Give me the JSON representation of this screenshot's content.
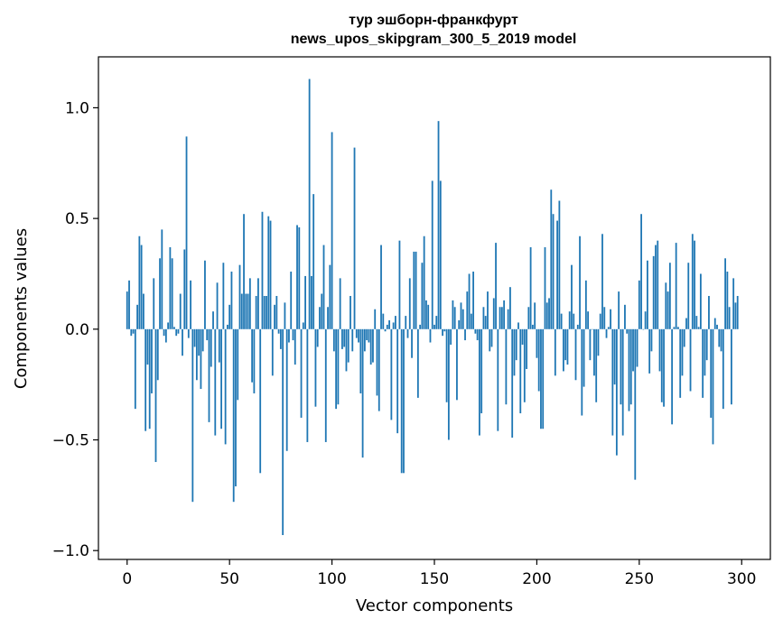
{
  "chart_data": {
    "type": "bar",
    "title": "тур эшборн-франкфурт",
    "subtitle": "news_upos_skipgram_300_5_2019 model",
    "xlabel": "Vector components",
    "ylabel": "Components values",
    "xlim": [
      -14,
      314
    ],
    "ylim": [
      -1.04,
      1.23
    ],
    "xticks": [
      0,
      50,
      100,
      150,
      200,
      250,
      300
    ],
    "xtick_labels": [
      "0",
      "50",
      "100",
      "150",
      "200",
      "250",
      "300"
    ],
    "yticks": [
      -1.0,
      -0.5,
      0.0,
      0.5,
      1.0
    ],
    "ytick_labels": [
      "−1.0",
      "−0.5",
      "0.0",
      "0.5",
      "1.0"
    ],
    "grid": false,
    "bar_color": "#1f77b4",
    "x_start": 0,
    "values": [
      0.17,
      0.22,
      -0.03,
      -0.02,
      -0.36,
      0.11,
      0.42,
      0.38,
      0.16,
      -0.46,
      -0.16,
      -0.45,
      -0.29,
      0.23,
      -0.6,
      -0.23,
      0.32,
      0.45,
      -0.03,
      -0.06,
      0.03,
      0.37,
      0.32,
      0.01,
      -0.03,
      -0.02,
      0.16,
      -0.12,
      0.36,
      0.87,
      -0.04,
      0.22,
      -0.78,
      -0.08,
      -0.23,
      -0.12,
      -0.27,
      -0.1,
      0.31,
      -0.05,
      -0.42,
      -0.17,
      0.08,
      -0.48,
      0.21,
      -0.15,
      -0.45,
      0.3,
      -0.52,
      0.02,
      0.11,
      0.26,
      -0.78,
      -0.71,
      -0.32,
      0.29,
      0.16,
      0.52,
      0.16,
      0.16,
      0.23,
      -0.24,
      -0.29,
      0.15,
      0.23,
      -0.65,
      0.53,
      0.15,
      0.15,
      0.51,
      0.49,
      -0.21,
      0.11,
      0.15,
      -0.02,
      -0.09,
      -0.93,
      0.12,
      -0.55,
      -0.06,
      0.26,
      -0.05,
      -0.16,
      0.47,
      0.46,
      -0.4,
      0.03,
      0.24,
      -0.51,
      1.13,
      0.24,
      0.61,
      -0.35,
      -0.08,
      0.1,
      0.16,
      0.38,
      -0.51,
      0.1,
      0.29,
      0.89,
      -0.1,
      -0.36,
      -0.34,
      0.23,
      -0.09,
      -0.08,
      -0.19,
      -0.15,
      0.15,
      -0.1,
      0.82,
      -0.04,
      -0.06,
      -0.29,
      -0.58,
      -0.1,
      -0.05,
      -0.06,
      -0.16,
      -0.15,
      0.09,
      -0.3,
      -0.37,
      0.38,
      0.07,
      -0.01,
      0.02,
      0.04,
      -0.41,
      0.03,
      0.06,
      -0.47,
      0.4,
      -0.65,
      -0.65,
      0.06,
      -0.04,
      0.23,
      -0.13,
      0.35,
      0.35,
      -0.31,
      0.02,
      0.3,
      0.42,
      0.13,
      0.11,
      -0.06,
      0.67,
      0.02,
      0.06,
      0.94,
      0.67,
      -0.03,
      -0.01,
      -0.33,
      -0.5,
      -0.07,
      0.13,
      0.1,
      -0.32,
      0.04,
      0.12,
      0.09,
      -0.05,
      0.17,
      0.25,
      0.07,
      0.26,
      -0.02,
      -0.05,
      -0.48,
      -0.38,
      0.1,
      0.06,
      0.17,
      -0.1,
      -0.08,
      0.14,
      0.39,
      -0.46,
      0.1,
      0.1,
      0.13,
      -0.34,
      0.09,
      0.19,
      -0.49,
      -0.21,
      -0.14,
      0.03,
      -0.38,
      -0.07,
      -0.33,
      -0.18,
      0.1,
      0.37,
      0.02,
      0.12,
      -0.13,
      -0.28,
      -0.45,
      -0.45,
      0.37,
      0.12,
      0.14,
      0.63,
      0.52,
      -0.21,
      0.49,
      0.58,
      0.07,
      -0.19,
      -0.14,
      -0.16,
      0.08,
      0.29,
      0.07,
      -0.23,
      0.02,
      0.42,
      -0.39,
      -0.26,
      0.22,
      0.08,
      -0.14,
      0.0,
      -0.21,
      -0.33,
      -0.12,
      0.07,
      0.43,
      0.1,
      -0.04,
      0.01,
      0.09,
      -0.48,
      -0.25,
      -0.57,
      0.17,
      -0.34,
      -0.48,
      0.11,
      -0.02,
      -0.37,
      -0.34,
      -0.19,
      -0.68,
      -0.17,
      0.22,
      0.52,
      0.0,
      0.08,
      0.31,
      -0.2,
      -0.1,
      0.33,
      0.38,
      0.4,
      -0.19,
      -0.33,
      -0.35,
      0.21,
      0.17,
      0.3,
      -0.43,
      0.01,
      0.39,
      0.01,
      -0.31,
      -0.21,
      -0.08,
      0.05,
      0.3,
      -0.28,
      0.43,
      0.4,
      0.06,
      0.01,
      0.25,
      -0.31,
      -0.21,
      -0.14,
      0.15,
      -0.4,
      -0.52,
      0.05,
      0.02,
      -0.08,
      -0.1,
      -0.36,
      0.32,
      0.26,
      0.1,
      -0.34,
      0.23,
      0.12,
      0.15
    ]
  }
}
